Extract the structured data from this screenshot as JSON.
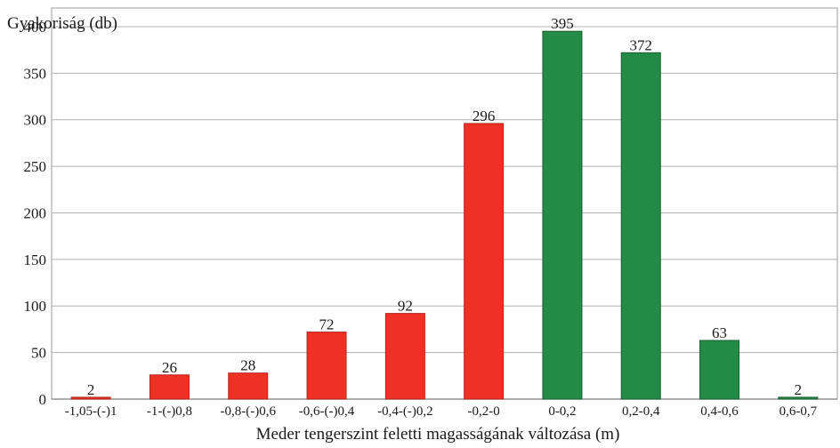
{
  "chart_data": {
    "type": "bar",
    "ylabel": "Gyakoriság (db)",
    "xlabel": "Meder tengerszint feletti magasságának változása (m)",
    "ylim": [
      0,
      420
    ],
    "yticks": [
      0,
      50,
      100,
      150,
      200,
      250,
      300,
      350,
      400
    ],
    "grid": true,
    "categories": [
      "-1,05-(-)1",
      "-1-(-)0,8",
      "-0,8-(-)0,6",
      "-0,6-(-)0,4",
      "-0,4-(-)0,2",
      "-0,2-0",
      "0-0,2",
      "0,2-0,4",
      "0,4-0,6",
      "0,6-0,7"
    ],
    "values": [
      2,
      26,
      28,
      72,
      92,
      296,
      395,
      372,
      63,
      2
    ],
    "bar_colors": [
      "#ee3124",
      "#ee3124",
      "#ee3124",
      "#ee3124",
      "#ee3124",
      "#ee3124",
      "#238b45",
      "#238b45",
      "#238b45",
      "#238b45"
    ],
    "bar_border_colors": [
      "#b3261c",
      "#b3261c",
      "#b3261c",
      "#b3261c",
      "#b3261c",
      "#b3261c",
      "#1a5e30",
      "#1a5e30",
      "#1a5e30",
      "#1a5e30"
    ],
    "grid_color": "#b0b0b0",
    "frame_color": "#9a9a9a"
  }
}
